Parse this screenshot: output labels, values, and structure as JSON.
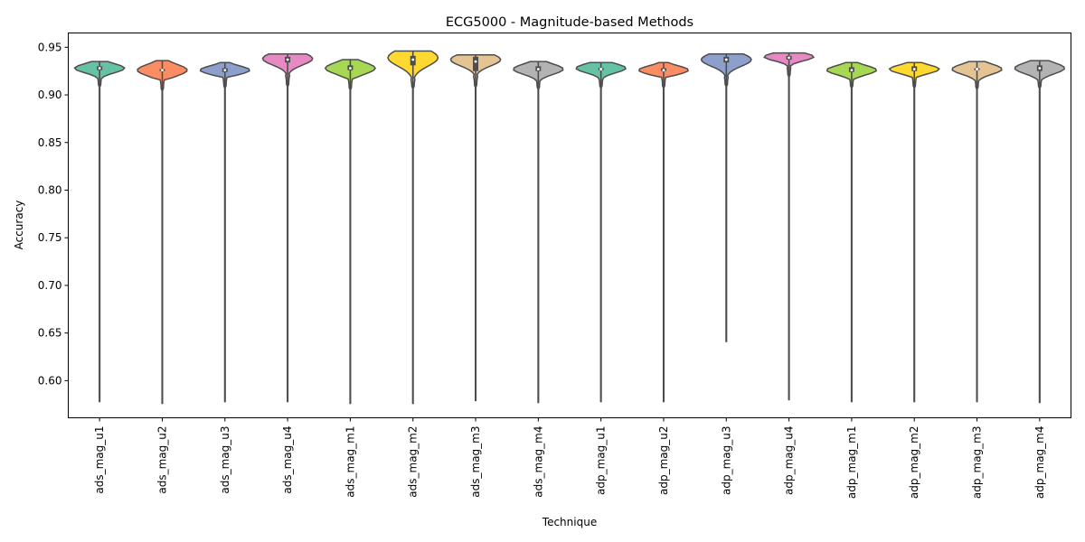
{
  "chart_data": {
    "type": "violin",
    "title": "ECG5000 - Magnitude-based Methods",
    "xlabel": "Technique",
    "ylabel": "Accuracy",
    "ylim": [
      0.561,
      0.965
    ],
    "yticks": [
      "0.60",
      "0.65",
      "0.70",
      "0.75",
      "0.80",
      "0.85",
      "0.90",
      "0.95"
    ],
    "grid": false,
    "series": [
      {
        "name": "ads_mag_u1",
        "color": "#66c2a5",
        "min": 0.578,
        "max": 0.935,
        "q1": 0.926,
        "median": 0.928,
        "q3": 0.93,
        "peak": 0.928,
        "lower_body": 0.919,
        "upper_body": 0.934
      },
      {
        "name": "ads_mag_u2",
        "color": "#fc8d62",
        "min": 0.576,
        "max": 0.936,
        "q1": 0.925,
        "median": 0.926,
        "q3": 0.927,
        "peak": 0.926,
        "lower_body": 0.916,
        "upper_body": 0.935
      },
      {
        "name": "ads_mag_u3",
        "color": "#8da0cb",
        "min": 0.578,
        "max": 0.934,
        "q1": 0.924,
        "median": 0.926,
        "q3": 0.928,
        "peak": 0.926,
        "lower_body": 0.919,
        "upper_body": 0.933
      },
      {
        "name": "ads_mag_u4",
        "color": "#e78ac3",
        "min": 0.578,
        "max": 0.943,
        "q1": 0.934,
        "median": 0.937,
        "q3": 0.94,
        "peak": 0.938,
        "lower_body": 0.921,
        "upper_body": 0.942
      },
      {
        "name": "ads_mag_m1",
        "color": "#a6d854",
        "min": 0.576,
        "max": 0.937,
        "q1": 0.926,
        "median": 0.928,
        "q3": 0.931,
        "peak": 0.928,
        "lower_body": 0.917,
        "upper_body": 0.936
      },
      {
        "name": "ads_mag_m2",
        "color": "#ffd92f",
        "min": 0.576,
        "max": 0.946,
        "q1": 0.931,
        "median": 0.937,
        "q3": 0.941,
        "peak": 0.939,
        "lower_body": 0.917,
        "upper_body": 0.945
      },
      {
        "name": "ads_mag_m3",
        "color": "#e5c494",
        "min": 0.579,
        "max": 0.942,
        "q1": 0.925,
        "median": 0.935,
        "q3": 0.94,
        "peak": 0.937,
        "lower_body": 0.92,
        "upper_body": 0.941
      },
      {
        "name": "ads_mag_m4",
        "color": "#b3b3b3",
        "min": 0.577,
        "max": 0.935,
        "q1": 0.925,
        "median": 0.927,
        "q3": 0.93,
        "peak": 0.927,
        "lower_body": 0.917,
        "upper_body": 0.934
      },
      {
        "name": "adp_mag_u1",
        "color": "#66c2a5",
        "min": 0.578,
        "max": 0.934,
        "q1": 0.926,
        "median": 0.927,
        "q3": 0.928,
        "peak": 0.928,
        "lower_body": 0.918,
        "upper_body": 0.933
      },
      {
        "name": "adp_mag_u2",
        "color": "#fc8d62",
        "min": 0.578,
        "max": 0.934,
        "q1": 0.925,
        "median": 0.926,
        "q3": 0.928,
        "peak": 0.926,
        "lower_body": 0.919,
        "upper_body": 0.933
      },
      {
        "name": "adp_mag_u3",
        "color": "#8da0cb",
        "min": 0.641,
        "max": 0.943,
        "q1": 0.934,
        "median": 0.937,
        "q3": 0.94,
        "peak": 0.937,
        "lower_body": 0.92,
        "upper_body": 0.942
      },
      {
        "name": "adp_mag_u4",
        "color": "#e78ac3",
        "min": 0.58,
        "max": 0.944,
        "q1": 0.937,
        "median": 0.939,
        "q3": 0.941,
        "peak": 0.94,
        "lower_body": 0.93,
        "upper_body": 0.943
      },
      {
        "name": "adp_mag_m1",
        "color": "#a6d854",
        "min": 0.578,
        "max": 0.934,
        "q1": 0.924,
        "median": 0.926,
        "q3": 0.929,
        "peak": 0.926,
        "lower_body": 0.918,
        "upper_body": 0.933
      },
      {
        "name": "adp_mag_m2",
        "color": "#ffd92f",
        "min": 0.578,
        "max": 0.934,
        "q1": 0.925,
        "median": 0.927,
        "q3": 0.93,
        "peak": 0.927,
        "lower_body": 0.919,
        "upper_body": 0.933
      },
      {
        "name": "adp_mag_m3",
        "color": "#e5c494",
        "min": 0.578,
        "max": 0.935,
        "q1": 0.926,
        "median": 0.927,
        "q3": 0.928,
        "peak": 0.927,
        "lower_body": 0.917,
        "upper_body": 0.934
      },
      {
        "name": "adp_mag_m4",
        "color": "#b3b3b3",
        "min": 0.577,
        "max": 0.936,
        "q1": 0.925,
        "median": 0.928,
        "q3": 0.931,
        "peak": 0.928,
        "lower_body": 0.917,
        "upper_body": 0.935
      }
    ]
  }
}
